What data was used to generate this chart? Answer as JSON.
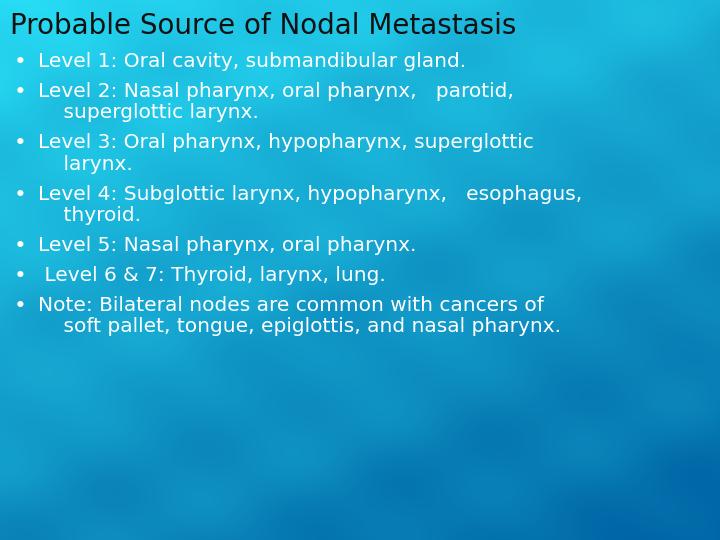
{
  "title": "Probable Source of Nodal Metastasis",
  "title_color": "#111111",
  "title_fontsize": 20,
  "bullet_color": "#ffffff",
  "bullet_fontsize": 14.5,
  "bullets": [
    [
      "Level 1: Oral cavity, submandibular gland."
    ],
    [
      "Level 2: Nasal pharynx, oral pharynx,   parotid,",
      "    superglottic larynx."
    ],
    [
      "Level 3: Oral pharynx, hypopharynx, superglottic",
      "    larynx."
    ],
    [
      "Level 4: Subglottic larynx, hypopharynx,   esophagus,",
      "    thyroid."
    ],
    [
      "Level 5: Nasal pharynx, oral pharynx."
    ],
    [
      " Level 6 & 7: Thyroid, larynx, lung."
    ],
    [
      "Note: Bilateral nodes are common with cancers of",
      "    soft pallet, tongue, epiglottis, and nasal pharynx."
    ]
  ],
  "fig_width": 7.2,
  "fig_height": 5.4,
  "dpi": 100
}
